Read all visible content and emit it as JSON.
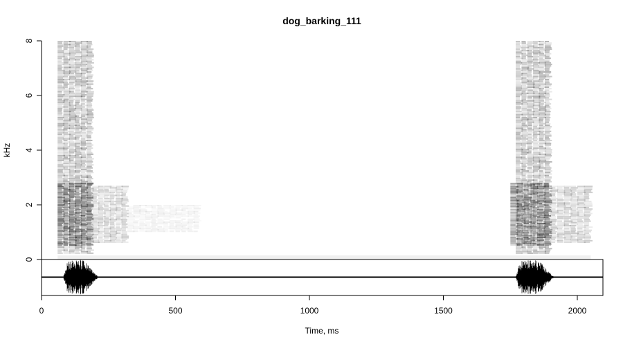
{
  "chart_data": {
    "type": "heatmap",
    "title": "dog_barking_111",
    "xlabel": "Time, ms",
    "ylabel": "kHz",
    "xlim": [
      0,
      2100
    ],
    "ylim": [
      0,
      8
    ],
    "x_ticks": [
      0,
      500,
      1000,
      1500,
      2000
    ],
    "y_ticks": [
      0,
      2,
      4,
      6,
      8
    ],
    "grid": false,
    "legend": "none",
    "spectrogram": {
      "colormap": "grayscale (white = low, black = high)",
      "energy_regions": [
        {
          "name": "bark 1 broadband",
          "t_start": 60,
          "t_end": 190,
          "f_low": 0.2,
          "f_high": 8.0,
          "intensity": 0.55
        },
        {
          "name": "bark 1 low band core",
          "t_start": 60,
          "t_end": 190,
          "f_low": 0.5,
          "f_high": 2.8,
          "intensity": 0.85
        },
        {
          "name": "bark 1 tail",
          "t_start": 190,
          "t_end": 320,
          "f_low": 0.6,
          "f_high": 2.7,
          "intensity": 0.35
        },
        {
          "name": "bark 1 faint tail",
          "t_start": 320,
          "t_end": 590,
          "f_low": 1.0,
          "f_high": 2.0,
          "intensity": 0.12
        },
        {
          "name": "bark 2 broadband",
          "t_start": 1770,
          "t_end": 1900,
          "f_low": 0.2,
          "f_high": 8.0,
          "intensity": 0.55
        },
        {
          "name": "bark 2 low band core",
          "t_start": 1750,
          "t_end": 1900,
          "f_low": 0.5,
          "f_high": 2.8,
          "intensity": 0.85
        },
        {
          "name": "bark 2 tail",
          "t_start": 1900,
          "t_end": 2050,
          "f_low": 0.6,
          "f_high": 2.7,
          "intensity": 0.4
        }
      ]
    },
    "oscillogram": {
      "bursts": [
        {
          "t_start": 80,
          "t_end": 190,
          "peak_amplitude": 1.0
        },
        {
          "t_start": 1770,
          "t_end": 1890,
          "peak_amplitude": 1.0
        }
      ]
    }
  }
}
